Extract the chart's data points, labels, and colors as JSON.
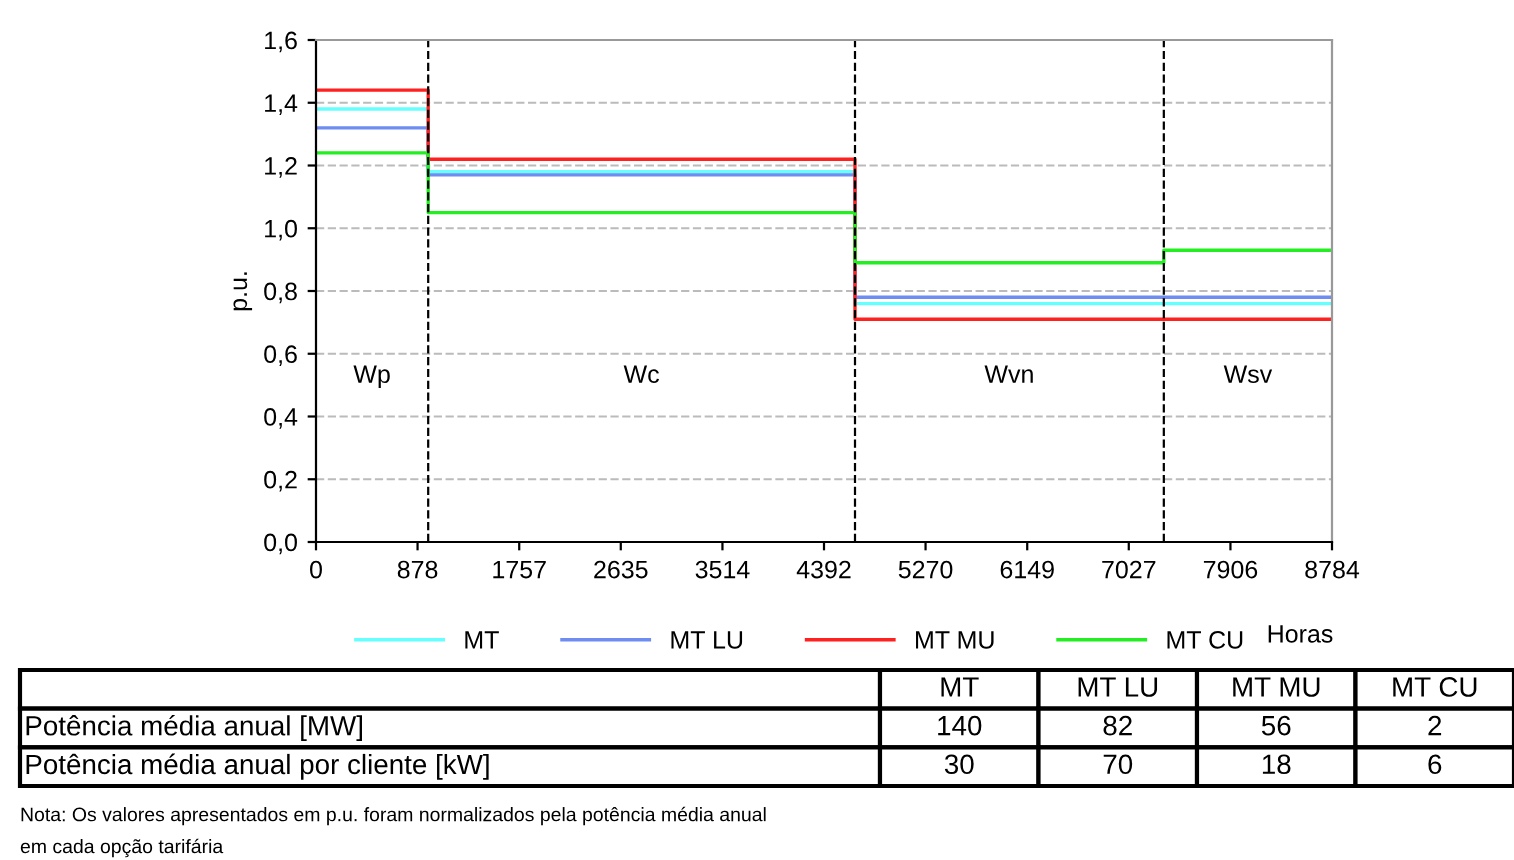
{
  "chart_data": [
    {
      "type": "step",
      "ylabel": "p.u.",
      "xlabel": "Horas",
      "x": [
        0,
        970,
        4660,
        7330,
        8784
      ],
      "series": [
        {
          "name": "MT",
          "color": "#66ffff",
          "values": [
            1.38,
            1.18,
            0.76,
            0.76,
            0.76
          ]
        },
        {
          "name": "MT LU",
          "color": "#6f8cf0",
          "values": [
            1.32,
            1.17,
            0.78,
            0.78,
            0.78
          ]
        },
        {
          "name": "MT MU",
          "color": "#ff2020",
          "values": [
            1.44,
            1.22,
            0.71,
            0.71,
            0.71
          ]
        },
        {
          "name": "MT CU",
          "color": "#22ee22",
          "values": [
            1.24,
            1.05,
            0.89,
            0.93,
            0.93
          ]
        }
      ],
      "xlim": [
        0,
        8784
      ],
      "ylim": [
        0,
        1.6
      ],
      "xticks": [
        0,
        878,
        1757,
        2635,
        3514,
        4392,
        5270,
        6149,
        7027,
        7906,
        8784
      ],
      "yticks": [
        {
          "value": 0,
          "label": "0,0"
        },
        {
          "value": 0.2,
          "label": "0,2"
        },
        {
          "value": 0.4,
          "label": "0,4"
        },
        {
          "value": 0.6,
          "label": "0,6"
        },
        {
          "value": 0.8,
          "label": "0,8"
        },
        {
          "value": 1.0,
          "label": "1,0"
        },
        {
          "value": 1.2,
          "label": "1,2"
        },
        {
          "value": 1.4,
          "label": "1,4"
        },
        {
          "value": 1.6,
          "label": "1,6"
        }
      ],
      "ref_lines": [
        {
          "axis": "x",
          "value": 970,
          "color": "#000000",
          "line_style": "dashed"
        },
        {
          "axis": "x",
          "value": 4660,
          "color": "#000000",
          "line_style": "dashed"
        },
        {
          "axis": "x",
          "value": 7330,
          "color": "#000000",
          "line_style": "dashed"
        }
      ],
      "annotations": [
        "Wp",
        "Wc",
        "Wvn",
        "Wsv",
        "Nota: Os valores apresentados em p.u. foram normalizados pela potência média anual",
        "em cada opção tarifária"
      ],
      "grid": "y",
      "legend": "bottom"
    },
    {
      "type": "other",
      "categories": [
        "MT",
        "MT LU",
        "MT MU",
        "MT CU"
      ],
      "y_categories": [
        "Potência média anual [MW]",
        "Potência média anual por cliente [kW]"
      ],
      "cell_labels": [
        [
          "140",
          "82",
          "56",
          "2"
        ],
        [
          "30",
          "70",
          "18",
          "6"
        ]
      ]
    }
  ]
}
